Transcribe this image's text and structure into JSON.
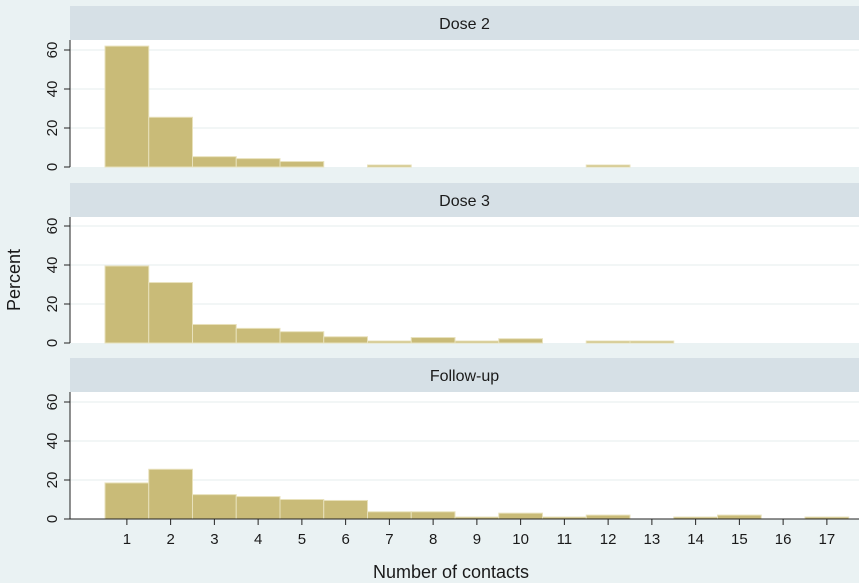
{
  "chart_data": {
    "type": "bar",
    "xlabel": "Number of contacts",
    "ylabel": "Percent",
    "ylim": [
      0,
      67
    ],
    "yticks": [
      0,
      20,
      40,
      60
    ],
    "xticks": [
      1,
      2,
      3,
      4,
      5,
      6,
      7,
      8,
      9,
      10,
      11,
      12,
      13,
      14,
      15,
      16,
      17
    ],
    "grid": true,
    "panels": [
      {
        "title": "Dose 2",
        "x": [
          1,
          2,
          3,
          4,
          5,
          6,
          7,
          8,
          9,
          10,
          11,
          12,
          13,
          14,
          15,
          16,
          17
        ],
        "values": [
          62,
          25.5,
          5.3,
          4.3,
          2.8,
          0,
          1.0,
          0,
          0,
          0,
          0,
          1.0,
          0,
          0,
          0,
          0,
          0
        ]
      },
      {
        "title": "Dose 3",
        "x": [
          1,
          2,
          3,
          4,
          5,
          6,
          7,
          8,
          9,
          10,
          11,
          12,
          13,
          14,
          15,
          16,
          17
        ],
        "values": [
          39.5,
          31,
          9.5,
          7.5,
          5.8,
          3.2,
          1.0,
          2.8,
          1.0,
          2.2,
          0,
          1.0,
          1.0,
          0,
          0,
          0,
          0
        ]
      },
      {
        "title": "Follow-up",
        "x": [
          1,
          2,
          3,
          4,
          5,
          6,
          7,
          8,
          9,
          10,
          11,
          12,
          13,
          14,
          15,
          16,
          17
        ],
        "values": [
          18.5,
          25.5,
          12.5,
          11.5,
          10.0,
          9.5,
          3.7,
          3.7,
          1.0,
          3.0,
          1.0,
          2.0,
          0,
          1.0,
          2.0,
          0,
          1.0
        ]
      }
    ]
  }
}
